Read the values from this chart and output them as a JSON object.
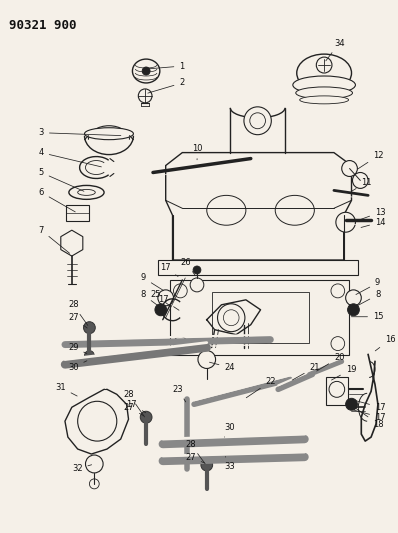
{
  "title": "90321 900",
  "bg": "#f5f0e8",
  "line_color": "#222222",
  "label_color": "#111111",
  "title_color": "#111111",
  "lw_main": 1.0,
  "lw_thin": 0.6,
  "lw_thick": 1.5,
  "label_fs": 6.0,
  "title_fs": 9.0,
  "figw": 3.98,
  "figh": 5.33,
  "dpi": 100
}
